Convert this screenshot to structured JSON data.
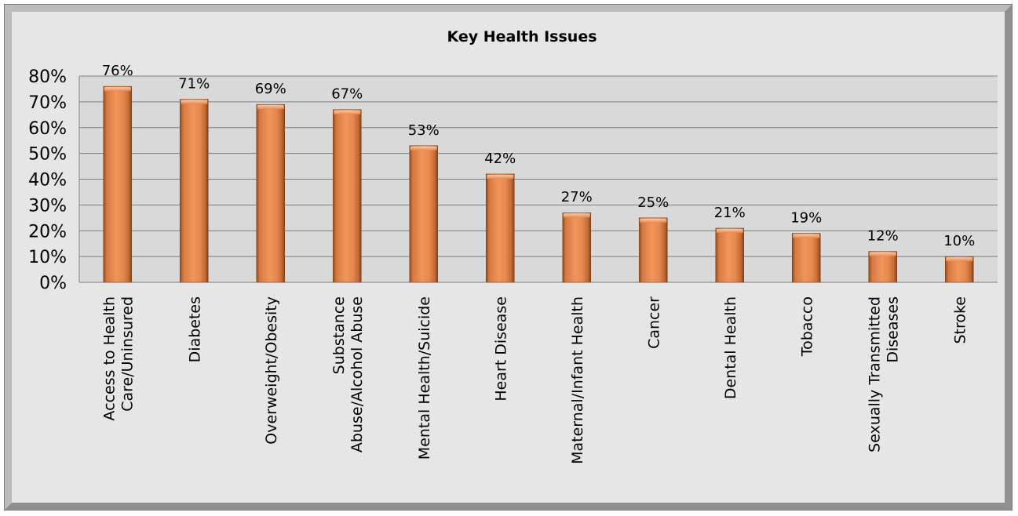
{
  "chart_data": {
    "type": "bar",
    "title": "Key Health Issues",
    "categories": [
      "Access to Health Care/Uninsured",
      "Diabetes",
      "Overweight/Obesity",
      "Substance Abuse/Alcohol Abuse",
      "Mental Health/Suicide",
      "Heart Disease",
      "Maternal/Infant Health",
      "Cancer",
      "Dental Health",
      "Tobacco",
      "Sexually Transmitted Diseases",
      "Stroke"
    ],
    "category_label_lines": [
      [
        "Access to Health",
        "Care/Uninsured"
      ],
      [
        "Diabetes"
      ],
      [
        "Overweight/Obesity"
      ],
      [
        "Substance",
        "Abuse/Alcohol Abuse"
      ],
      [
        "Mental Health/Suicide"
      ],
      [
        "Heart Disease"
      ],
      [
        "Maternal/Infant Health"
      ],
      [
        "Cancer"
      ],
      [
        "Dental Health"
      ],
      [
        "Tobacco"
      ],
      [
        "Sexually Transmitted",
        "Diseases"
      ],
      [
        "Stroke"
      ]
    ],
    "values": [
      76,
      71,
      69,
      67,
      53,
      42,
      27,
      25,
      21,
      19,
      12,
      10
    ],
    "data_labels": [
      "76%",
      "71%",
      "69%",
      "67%",
      "53%",
      "42%",
      "27%",
      "25%",
      "21%",
      "19%",
      "12%",
      "10%"
    ],
    "y_ticks": [
      0,
      10,
      20,
      30,
      40,
      50,
      60,
      70,
      80
    ],
    "y_tick_labels": [
      "0%",
      "10%",
      "20%",
      "30%",
      "40%",
      "50%",
      "60%",
      "70%",
      "80%"
    ],
    "ylim": [
      0,
      80
    ],
    "xlabel": "",
    "ylabel": "",
    "grid": true,
    "legend": "none",
    "colors": {
      "bar": "#e8894f",
      "bar_highlight": "#f7b98a",
      "bar_shadow": "#9a4d1f",
      "plot_background": "#d9d9d9",
      "frame_background": "#e6e6e6",
      "gridline": "#7f7f7f"
    }
  }
}
